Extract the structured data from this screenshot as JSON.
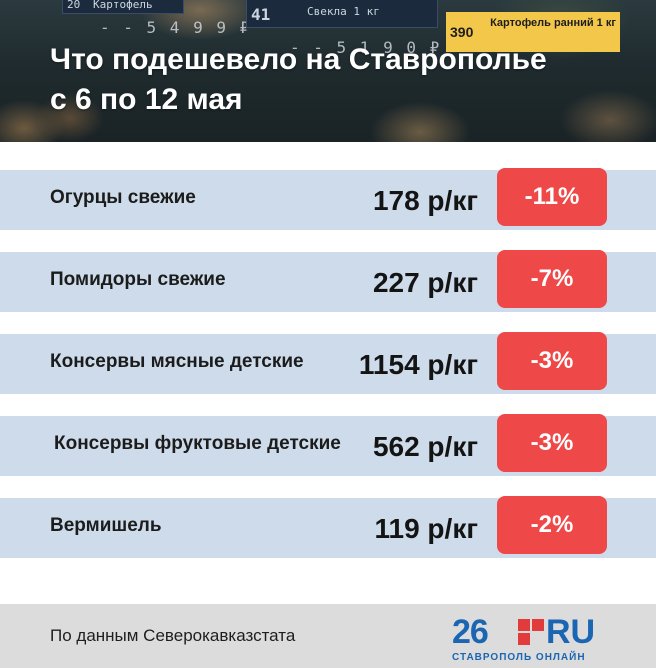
{
  "header": {
    "title_line1": "Что подешевело на Ставрополье",
    "title_line2": "с 6 по 12 мая"
  },
  "background_tags": {
    "tag_a_num": "20",
    "tag_a_label": "Картофель",
    "tag_a_price": "- - 5 4 9 9 ₽",
    "tag_b_num": "41",
    "tag_b_label": "Свекла 1 кг",
    "tag_b_price": "- - 5 1 9 0 ₽",
    "tag_c_num": "390",
    "tag_c_label": "Картофель ранний 1 кг"
  },
  "items": [
    {
      "name": "Огурцы свежие",
      "price": "178 р/кг",
      "change": "-11%"
    },
    {
      "name": "Помидоры свежие",
      "price": "227 р/кг",
      "change": "-7%"
    },
    {
      "name": "Консервы мясные детские",
      "price": "1154 р/кг",
      "change": "-3%"
    },
    {
      "name": "Консервы фруктовые детские",
      "price": "562 р/кг",
      "change": "-3%"
    },
    {
      "name": "Вермишель",
      "price": "119 р/кг",
      "change": "-2%"
    }
  ],
  "footer": {
    "source": "По данным Северокавказстата",
    "logo_number": "26",
    "logo_domain": "RU",
    "logo_subtitle": "СТАВРОПОЛЬ ОНЛАЙН"
  },
  "colors": {
    "row_background": "#cddbea",
    "badge_background": "#ef4848",
    "logo_blue": "#1b66b3",
    "logo_red": "#e23b3b"
  }
}
